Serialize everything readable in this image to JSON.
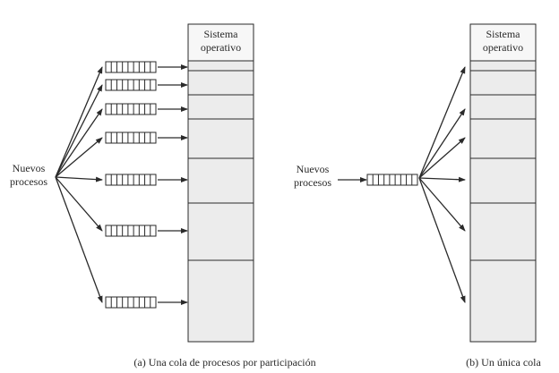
{
  "diagram": {
    "left": {
      "source_label_line1": "Nuevos",
      "source_label_line2": "procesos",
      "block_title_line1": "Sistema",
      "block_title_line2": "operativo",
      "caption": "(a) Una cola de procesos por participación",
      "partition_count": 7
    },
    "right": {
      "source_label_line1": "Nuevos",
      "source_label_line2": "procesos",
      "block_title_line1": "Sistema",
      "block_title_line2": "operativo",
      "caption": "(b) Un única cola",
      "partition_count": 7
    },
    "colors": {
      "line": "#2a2a2a",
      "block_fill": "#ececec",
      "os_fill": "#f5f5f5"
    }
  }
}
